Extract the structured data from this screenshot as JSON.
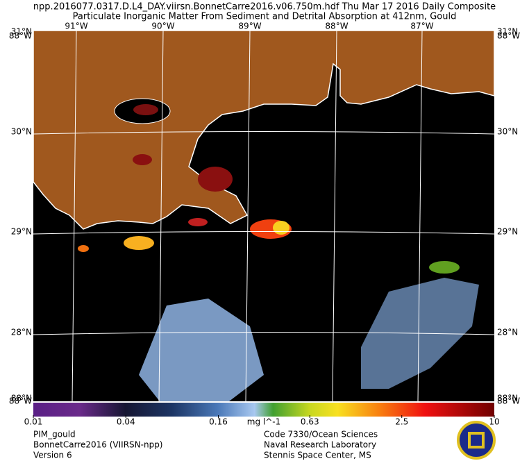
{
  "header": {
    "title": "npp.2016077.0317.D.L4_DAY.viirsn.BonnetCarre2016.v06.750m.hdf     Thu Mar 17 2016 Daily Composite",
    "subtitle": "Particulate Inorganic Matter From Sediment and Detrital Absorption at 412nm, Gould"
  },
  "map": {
    "longitude_labels": [
      "91°W",
      "90°W",
      "89°W",
      "88°W",
      "87°W"
    ],
    "latitude_labels": [
      "30°N",
      "29°N",
      "28°N"
    ],
    "corner_top": [
      "31°N",
      "88°W"
    ],
    "corner_bottom": [
      "88°N",
      "88°W"
    ]
  },
  "colorbar": {
    "ticks": [
      0.01,
      0.04,
      0.16,
      0.63,
      2.5,
      10
    ],
    "range": [
      0.01,
      10
    ],
    "log": true,
    "unit": "mg l^-1"
  },
  "footer": {
    "left": [
      "PIM_gould",
      "BonnetCarre2016 (VIIRSN-npp)",
      "Version 6"
    ],
    "right": [
      "Code 7330/Ocean Sciences",
      "Naval Research Laboratory",
      "Stennis Space Center, MS"
    ]
  }
}
